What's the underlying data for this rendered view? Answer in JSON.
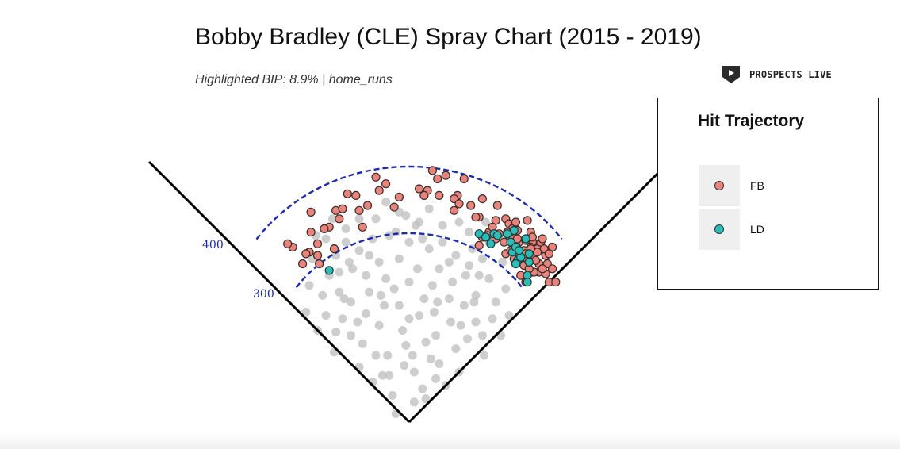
{
  "chart_data": {
    "type": "scatter",
    "title": "Bobby Bradley (CLE) Spray Chart (2015 - 2019)",
    "subtitle": "Highlighted BIP: 8.9% | home_runs",
    "legend": {
      "title": "Hit Trajectory",
      "placement": "right",
      "entries": [
        {
          "label": "FB",
          "color": "#e8847c"
        },
        {
          "label": "LD",
          "color": "#2bbdb6"
        }
      ]
    },
    "distance_arcs": [
      {
        "label": "300",
        "distance": 300
      },
      {
        "label": "400",
        "distance": 400
      }
    ],
    "background_color": "#bdbdbd",
    "line_color": "#1a2bb5",
    "fb_points": [
      [
        -59,
        126
      ],
      [
        -59,
        114
      ],
      [
        -54,
        95
      ],
      [
        -60,
        102
      ],
      [
        -64,
        95
      ],
      [
        -70,
        105
      ],
      [
        -48,
        117
      ],
      [
        -44,
        127
      ],
      [
        -25,
        130
      ],
      [
        -37,
        137
      ],
      [
        -40,
        128
      ],
      [
        -30,
        127
      ],
      [
        -18,
        139
      ],
      [
        -20,
        147
      ],
      [
        -6,
        135
      ],
      [
        -9,
        129
      ],
      [
        6,
        140
      ],
      [
        14,
        151
      ],
      [
        17,
        146
      ],
      [
        22,
        148
      ],
      [
        29,
        136
      ],
      [
        33,
        146
      ],
      [
        37,
        130
      ],
      [
        42,
        123
      ],
      [
        44,
        134
      ],
      [
        48,
        114
      ],
      [
        53,
        130
      ],
      [
        58,
        122
      ],
      [
        60,
        119
      ],
      [
        63,
        112
      ],
      [
        65,
        115
      ],
      [
        71,
        121
      ],
      [
        66,
        108
      ],
      [
        52,
        110
      ],
      [
        69,
        103
      ],
      [
        74,
        108
      ],
      [
        70,
        109
      ],
      [
        75,
        98
      ],
      [
        74,
        90
      ],
      [
        78,
        95
      ],
      [
        78,
        90
      ],
      [
        82,
        89
      ],
      [
        84,
        84
      ],
      [
        65,
        100
      ],
      [
        68,
        96
      ],
      [
        58,
        101
      ],
      [
        61,
        103
      ],
      [
        44,
        111
      ],
      [
        42,
        106
      ],
      [
        40,
        123
      ],
      [
        27,
        134
      ],
      [
        18,
        136
      ],
      [
        11,
        139
      ],
      [
        73,
        105
      ],
      [
        76,
        97
      ],
      [
        83,
        95
      ],
      [
        80,
        92
      ],
      [
        67,
        88
      ],
      [
        70,
        84
      ],
      [
        88,
        84
      ],
      [
        86,
        92
      ],
      [
        67,
        96
      ],
      [
        73,
        114
      ],
      [
        77,
        104
      ],
      [
        30,
        131
      ],
      [
        -14,
        143
      ],
      [
        52,
        121
      ],
      [
        47,
        112
      ],
      [
        61,
        110
      ],
      [
        75,
        90
      ],
      [
        82,
        100
      ],
      [
        86,
        105
      ],
      [
        69,
        94
      ],
      [
        71,
        98
      ],
      [
        79,
        108
      ],
      [
        50,
        117
      ],
      [
        -42,
        122
      ],
      [
        -55,
        100
      ],
      [
        -73,
        107
      ],
      [
        -51,
        116
      ],
      [
        -28,
        117
      ],
      [
        -32,
        136
      ],
      [
        9,
        136
      ],
      [
        27,
        127
      ],
      [
        62,
        116
      ],
      [
        70,
        101
      ],
      [
        63,
        98
      ],
      [
        80,
        110
      ],
      [
        81,
        104
      ],
      [
        77,
        102
      ],
      [
        66,
        101
      ],
      [
        64,
        106
      ],
      [
        57,
        108
      ],
      [
        59,
        114
      ],
      [
        72,
        92
      ],
      [
        84,
        101
      ],
      [
        74,
        111
      ],
      [
        64,
        120
      ],
      [
        65,
        110
      ],
      [
        54,
        113
      ],
      [
        73,
        104
      ],
      [
        -45,
        104
      ],
      [
        -55,
        107
      ],
      [
        -62,
        101
      ]
    ],
    "ld_points": [
      [
        42,
        113
      ],
      [
        51,
        113
      ],
      [
        49,
        107
      ],
      [
        46,
        111
      ],
      [
        61,
        108
      ],
      [
        62,
        102
      ],
      [
        65,
        97
      ],
      [
        71,
        88
      ],
      [
        71,
        84
      ],
      [
        64,
        95
      ],
      [
        72,
        96
      ],
      [
        64,
        105
      ],
      [
        70,
        110
      ],
      [
        63,
        115
      ],
      [
        -48,
        91
      ],
      [
        53,
        112
      ],
      [
        59,
        113
      ],
      [
        67,
        99
      ],
      [
        72,
        101
      ],
      [
        66,
        103
      ]
    ],
    "background_points": [
      [
        -8,
        5
      ],
      [
        3,
        12
      ],
      [
        8,
        20
      ],
      [
        -12,
        28
      ],
      [
        18,
        35
      ],
      [
        -20,
        40
      ],
      [
        10,
        48
      ],
      [
        -4,
        55
      ],
      [
        25,
        60
      ],
      [
        -26,
        65
      ],
      [
        33,
        70
      ],
      [
        -35,
        72
      ],
      [
        40,
        76
      ],
      [
        -42,
        78
      ],
      [
        14,
        82
      ],
      [
        -14,
        86
      ],
      [
        48,
        86
      ],
      [
        -48,
        88
      ],
      [
        5,
        92
      ],
      [
        -6,
        98
      ],
      [
        28,
        100
      ],
      [
        -30,
        103
      ],
      [
        20,
        108
      ],
      [
        -22,
        110
      ],
      [
        36,
        114
      ],
      [
        -38,
        116
      ],
      [
        4,
        118
      ],
      [
        -2,
        124
      ],
      [
        12,
        128
      ],
      [
        -14,
        132
      ],
      [
        30,
        30
      ],
      [
        -30,
        33
      ],
      [
        45,
        40
      ],
      [
        -45,
        42
      ],
      [
        55,
        52
      ],
      [
        -55,
        55
      ],
      [
        60,
        64
      ],
      [
        -62,
        66
      ],
      [
        2,
        40
      ],
      [
        -2,
        46
      ],
      [
        16,
        52
      ],
      [
        -18,
        58
      ],
      [
        24,
        74
      ],
      [
        -24,
        78
      ],
      [
        34,
        88
      ],
      [
        -34,
        92
      ],
      [
        44,
        98
      ],
      [
        -44,
        100
      ],
      [
        52,
        72
      ],
      [
        -52,
        76
      ],
      [
        28,
        44
      ],
      [
        -28,
        47
      ],
      [
        6,
        64
      ],
      [
        -6,
        70
      ],
      [
        18,
        92
      ],
      [
        -18,
        96
      ],
      [
        40,
        60
      ],
      [
        -40,
        62
      ],
      [
        22,
        22
      ],
      [
        -22,
        24
      ],
      [
        9,
        74
      ],
      [
        -9,
        80
      ],
      [
        48,
        108
      ],
      [
        -50,
        110
      ],
      [
        56,
        96
      ],
      [
        -58,
        98
      ],
      [
        12,
        104
      ],
      [
        -12,
        112
      ],
      [
        38,
        104
      ],
      [
        -38,
        108
      ],
      [
        30,
        120
      ],
      [
        -30,
        122
      ],
      [
        0,
        108
      ],
      [
        0,
        84
      ],
      [
        0,
        62
      ],
      [
        15,
        66
      ],
      [
        -15,
        70
      ],
      [
        26,
        84
      ],
      [
        -26,
        88
      ],
      [
        42,
        88
      ],
      [
        -42,
        90
      ],
      [
        50,
        62
      ],
      [
        -50,
        64
      ],
      [
        35,
        50
      ],
      [
        -35,
        52
      ],
      [
        13,
        38
      ],
      [
        -13,
        40
      ],
      [
        58,
        80
      ],
      [
        -60,
        82
      ],
      [
        20,
        118
      ],
      [
        -20,
        122
      ],
      [
        8,
        110
      ],
      [
        -8,
        114
      ],
      [
        46,
        120
      ],
      [
        -46,
        122
      ],
      [
        3,
        30
      ],
      [
        -3,
        34
      ],
      [
        31,
        58
      ],
      [
        -31,
        60
      ],
      [
        17,
        72
      ],
      [
        -17,
        76
      ],
      [
        39,
        72
      ],
      [
        -39,
        74
      ],
      [
        24,
        96
      ],
      [
        -24,
        100
      ],
      [
        56,
        110
      ],
      [
        -56,
        112
      ],
      [
        10,
        14
      ],
      [
        -10,
        16
      ],
      [
        16,
        26
      ],
      [
        -16,
        28
      ],
      [
        44,
        52
      ],
      [
        -44,
        54
      ],
      [
        36,
        94
      ],
      [
        -36,
        96
      ],
      [
        6,
        120
      ],
      [
        -6,
        126
      ]
    ]
  }
}
